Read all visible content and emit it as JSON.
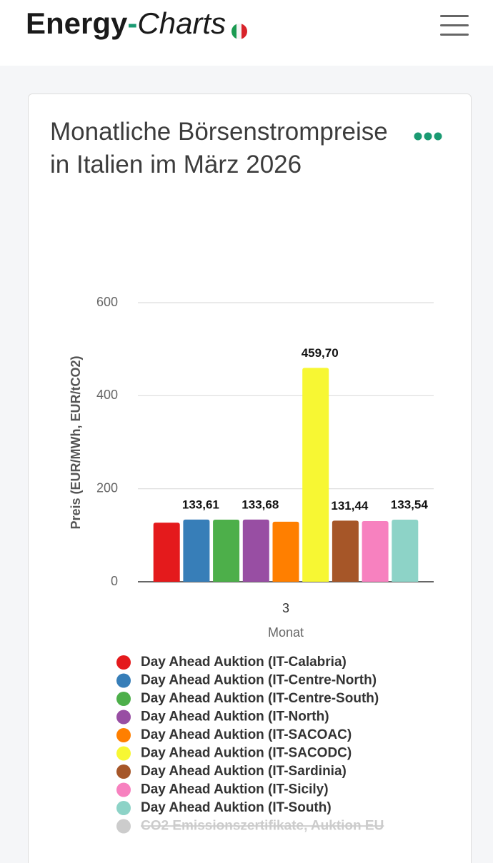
{
  "header": {
    "logo": [
      "Energy",
      "-",
      "Charts"
    ]
  },
  "chart_data": {
    "type": "bar",
    "title": "Monatliche Börsenstrompreise in Italien im März 2026",
    "ylabel": "Preis (EUR/MWh, EUR/tCO2)",
    "xlabel": "Monat",
    "categories": [
      "3"
    ],
    "ylim": [
      0,
      600
    ],
    "yticks": [
      0,
      200,
      400,
      600
    ],
    "grid": true,
    "series": [
      {
        "name": "Day Ahead Auktion (IT-Calabria)",
        "color": "#e41a1c",
        "values": [
          127
        ]
      },
      {
        "name": "Day Ahead Auktion (IT-Centre-North)",
        "color": "#377eb8",
        "values": [
          133.61
        ],
        "value_labels": [
          "133,61"
        ]
      },
      {
        "name": "Day Ahead Auktion (IT-Centre-South)",
        "color": "#4daf4a",
        "values": [
          133.5
        ]
      },
      {
        "name": "Day Ahead Auktion (IT-North)",
        "color": "#984ea3",
        "values": [
          133.68
        ],
        "value_labels": [
          "133,68"
        ]
      },
      {
        "name": "Day Ahead Auktion (IT-SACOAC)",
        "color": "#ff7f00",
        "values": [
          129
        ]
      },
      {
        "name": "Day Ahead Auktion (IT-SACODC)",
        "color": "#f7f733",
        "values": [
          459.7
        ],
        "value_labels": [
          "459,70"
        ]
      },
      {
        "name": "Day Ahead Auktion (IT-Sardinia)",
        "color": "#a65628",
        "values": [
          131.44
        ],
        "value_labels": [
          "131,44"
        ]
      },
      {
        "name": "Day Ahead Auktion (IT-Sicily)",
        "color": "#f781bf",
        "values": [
          130.5
        ]
      },
      {
        "name": "Day Ahead Auktion (IT-South)",
        "color": "#8dd3c7",
        "values": [
          133.54
        ],
        "value_labels": [
          "133,54"
        ]
      },
      {
        "name": "CO2 Emissionszertifikate, Auktion EU",
        "color": "#cccccc",
        "values": [
          null
        ],
        "hidden": true
      }
    ]
  }
}
